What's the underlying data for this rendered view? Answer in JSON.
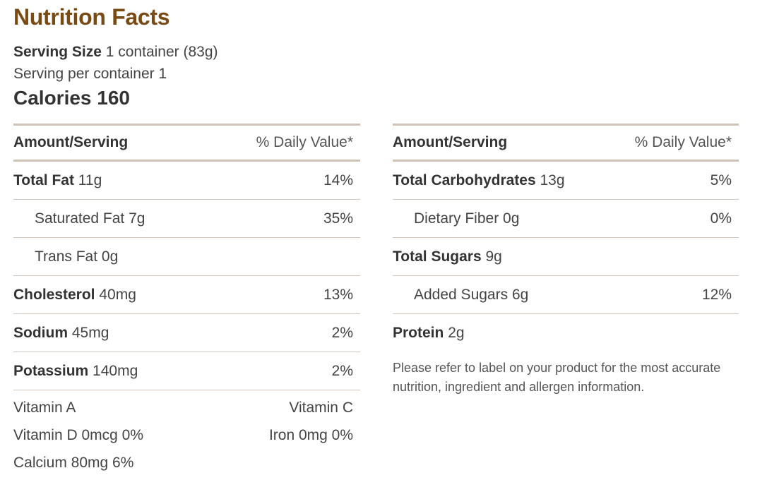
{
  "title": "Nutrition Facts",
  "serving": {
    "size_label": "Serving Size",
    "size_value": "1 container (83g)",
    "per_container": "Serving per container 1"
  },
  "calories": "Calories 160",
  "header": {
    "amount": "Amount/Serving",
    "daily_value": "% Daily Value*"
  },
  "left": [
    {
      "name": "Total Fat",
      "amount": "11g",
      "dv": "14%",
      "bold": true
    },
    {
      "name": "Saturated Fat",
      "amount": "7g",
      "dv": "35%",
      "bold": false
    },
    {
      "name": "Trans Fat",
      "amount": "0g",
      "dv": "",
      "bold": false
    },
    {
      "name": "Cholesterol",
      "amount": "40mg",
      "dv": "13%",
      "bold": true
    },
    {
      "name": "Sodium",
      "amount": "45mg",
      "dv": "2%",
      "bold": true
    },
    {
      "name": "Potassium",
      "amount": "140mg",
      "dv": "2%",
      "bold": true
    }
  ],
  "right": [
    {
      "name": "Total Carbohydrates",
      "amount": "13g",
      "dv": "5%",
      "bold": true
    },
    {
      "name": "Dietary Fiber",
      "amount": "0g",
      "dv": "0%",
      "bold": false
    },
    {
      "name": "Total Sugars",
      "amount": "9g",
      "dv": "",
      "bold": true
    },
    {
      "name": "Added Sugars",
      "amount": "6g",
      "dv": "12%",
      "bold": false
    },
    {
      "name": "Protein",
      "amount": "2g",
      "dv": "",
      "bold": true
    }
  ],
  "vitamins": [
    [
      "Vitamin A",
      "Vitamin C"
    ],
    [
      "Vitamin D 0mcg 0%",
      "Iron 0mg 0%"
    ],
    [
      "Calcium 80mg 6%",
      ""
    ]
  ],
  "note": "Please refer to label on your product for the most accurate nutrition, ingredient and allergen information.",
  "colors": {
    "title": "#7a4a14",
    "rule": "#cfc3b6"
  }
}
